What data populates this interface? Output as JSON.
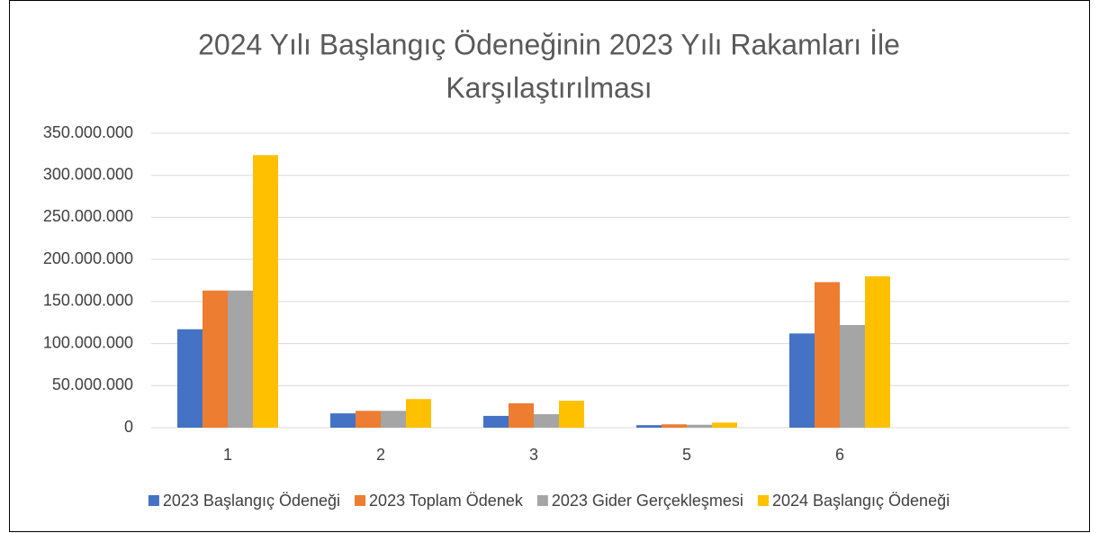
{
  "chart_data": {
    "type": "bar",
    "title": [
      "2024 Yılı Başlangıç Ödeneğinin 2023 Yılı Rakamları İle",
      "Karşılaştırılması"
    ],
    "categories": [
      "1",
      "2",
      "3",
      "5",
      "6",
      null
    ],
    "series": [
      {
        "name": "2023 Başlangıç Ödeneği",
        "color": "#4472c4",
        "values": [
          117000000,
          17000000,
          14000000,
          3000000,
          112000000,
          null
        ]
      },
      {
        "name": "2023 Toplam Ödenek",
        "color": "#ed7d31",
        "values": [
          163000000,
          20000000,
          29000000,
          4000000,
          173000000,
          null
        ]
      },
      {
        "name": "2023 Gider Gerçekleşmesi",
        "color": "#a5a5a5",
        "values": [
          163000000,
          20000000,
          16000000,
          3500000,
          122000000,
          null
        ]
      },
      {
        "name": "2024 Başlangıç Ödeneği",
        "color": "#ffc000",
        "values": [
          324000000,
          34000000,
          32000000,
          6000000,
          180000000,
          null
        ]
      }
    ],
    "ylim": [
      0,
      350000000
    ],
    "yticks": [
      0,
      {
        "value": 50000000,
        "label": "50.000.000"
      },
      {
        "value": 100000000,
        "label": "100.000.000"
      },
      {
        "value": 150000000,
        "label": "150.000.000"
      },
      {
        "value": 200000000,
        "label": "200.000.000"
      },
      {
        "value": 250000000,
        "label": "250.000.000"
      },
      {
        "value": 300000000,
        "label": "300.000.000"
      },
      {
        "value": 350000000,
        "label": "350.000.000"
      }
    ],
    "grid": true,
    "legend": "bottom"
  }
}
